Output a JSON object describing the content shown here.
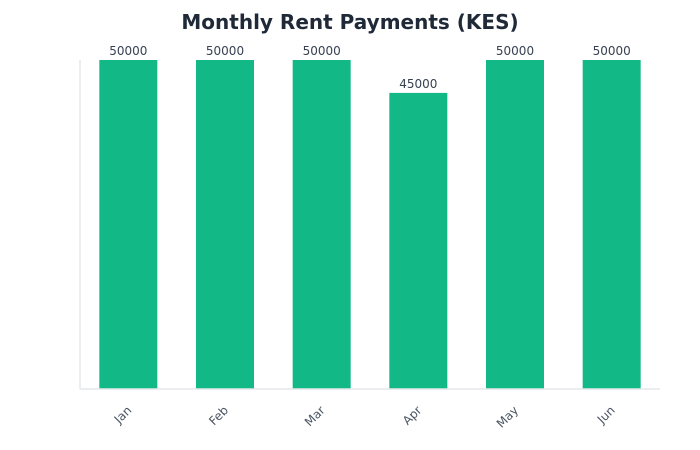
{
  "chart_data": {
    "type": "bar",
    "title": "Monthly Rent Payments (KES)",
    "xlabel": "",
    "ylabel": "",
    "categories": [
      "Jan",
      "Feb",
      "Mar",
      "Apr",
      "May",
      "Jun"
    ],
    "values": [
      50000,
      50000,
      50000,
      45000,
      50000,
      50000
    ],
    "ylim": [
      0,
      50000
    ],
    "grid": false,
    "show_data_labels": true,
    "bar_color": "#12b886",
    "axis_color": "#e5e7eb",
    "title_color": "#1f2937",
    "label_color": "#374151"
  }
}
